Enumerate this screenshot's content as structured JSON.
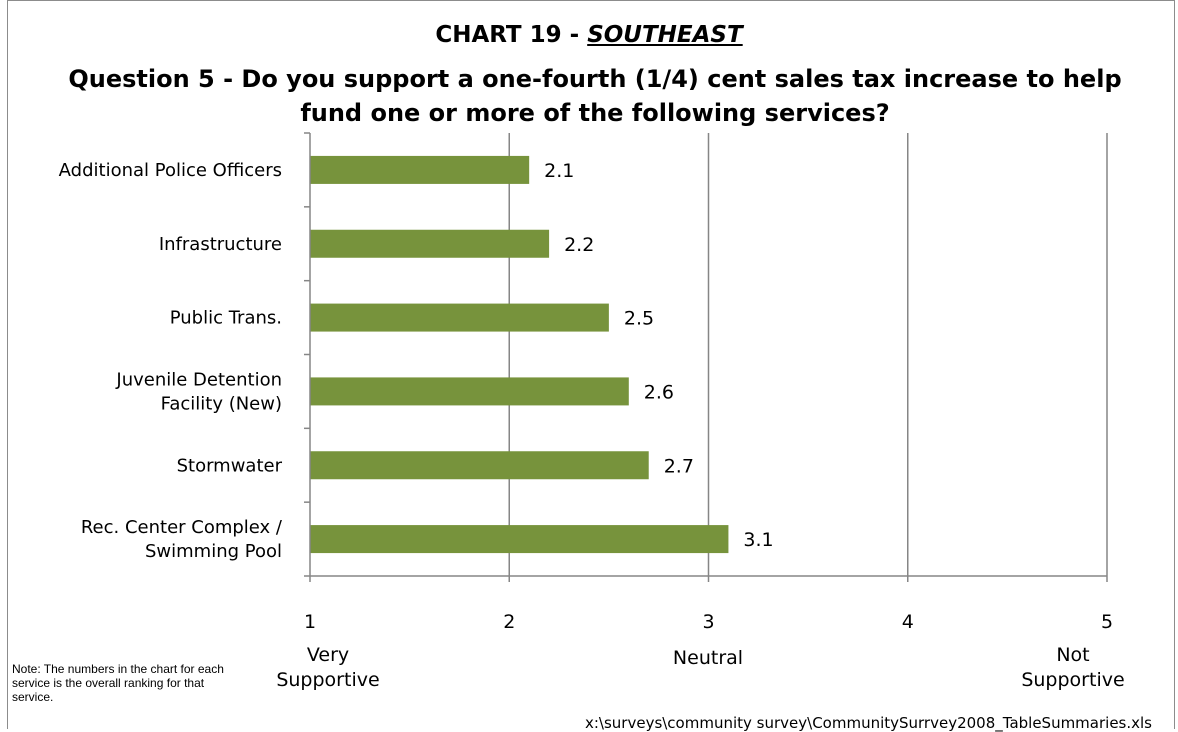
{
  "header": {
    "chart_label": "CHART 19 - ",
    "region": "SOUTHEAST",
    "question": "Question 5 - Do you support a one-fourth (1/4) cent sales tax increase to help fund one or more of the following services?"
  },
  "anchors": {
    "left": "Very Supportive",
    "middle": "Neutral",
    "right": "Not Supportive"
  },
  "note": "Note:  The numbers in the chart for each service is the overall ranking for that service.",
  "filepath": "x:\\surveys\\community survey\\CommunitySurrvey2008_TableSummaries.xls",
  "colors": {
    "bar": "#77933c",
    "grid": "#868686",
    "axis": "#868686"
  },
  "chart_data": {
    "type": "bar",
    "orientation": "horizontal",
    "categories": [
      "Additional Police Officers",
      "Infrastructure",
      "Public Trans.",
      "Juvenile Detention Facility (New)",
      "Stormwater",
      "Rec. Center Complex / Swimming Pool"
    ],
    "category_lines": [
      [
        "Additional Police Officers"
      ],
      [
        "Infrastructure"
      ],
      [
        "Public Trans."
      ],
      [
        "Juvenile Detention",
        "Facility (New)"
      ],
      [
        "Stormwater"
      ],
      [
        "Rec. Center Complex /",
        "Swimming Pool"
      ]
    ],
    "values": [
      2.1,
      2.2,
      2.5,
      2.6,
      2.7,
      3.1
    ],
    "xlim": [
      1,
      5
    ],
    "xticks": [
      1,
      2,
      3,
      4,
      5
    ],
    "grid": true,
    "data_labels": true
  }
}
